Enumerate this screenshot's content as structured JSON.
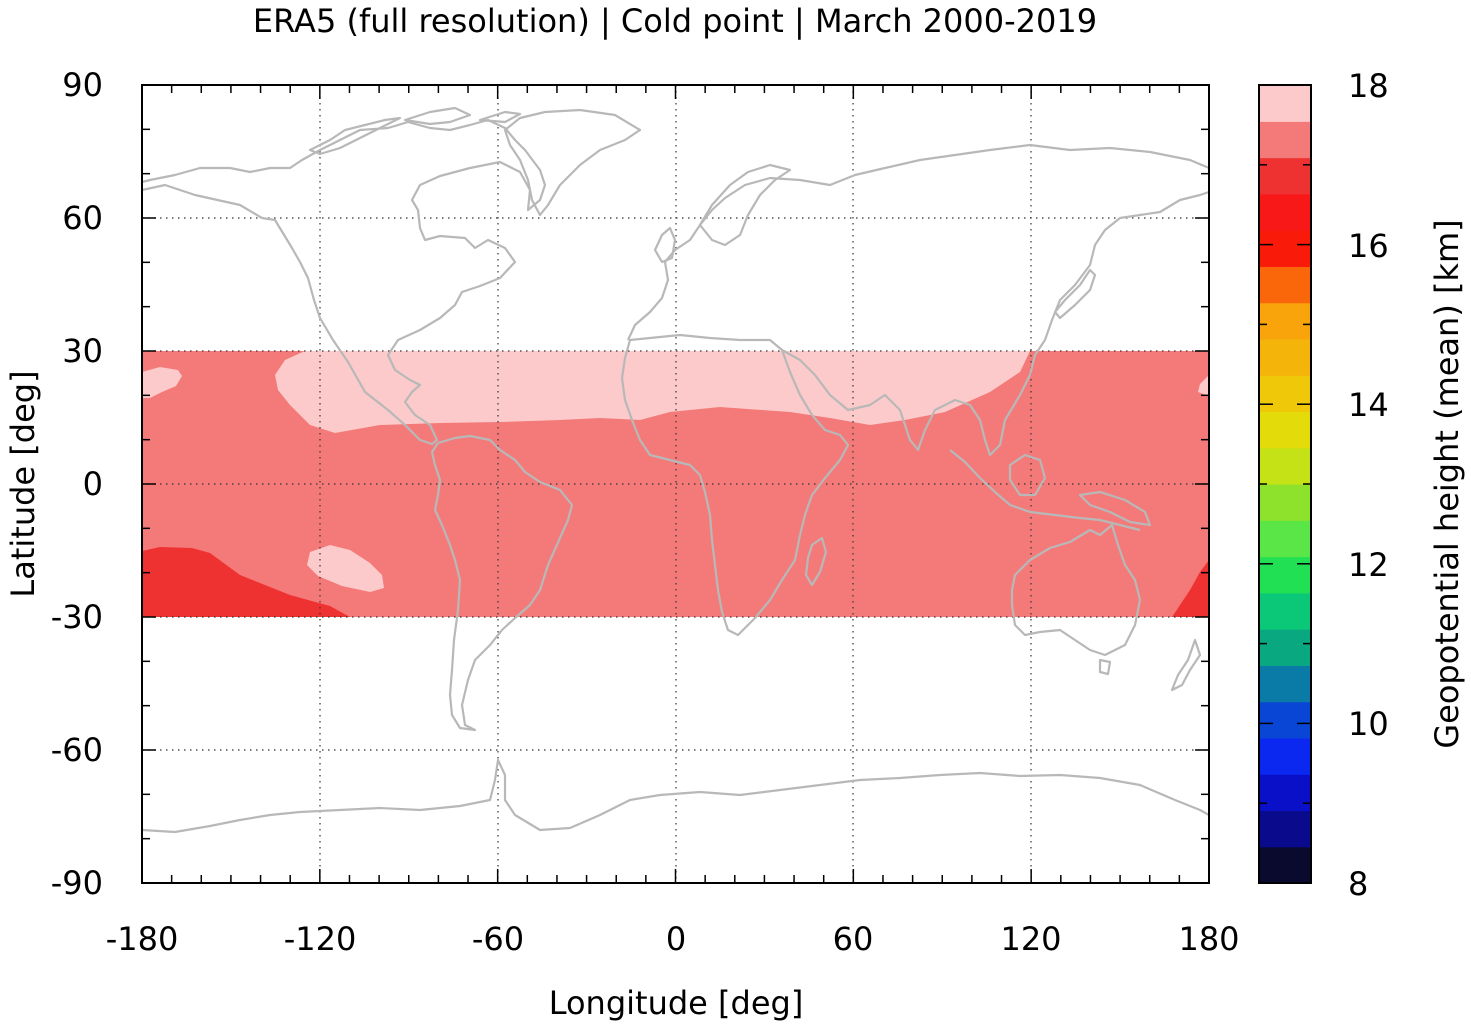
{
  "title": "ERA5 (full resolution) | Cold point | March 2000-2019",
  "x_axis": {
    "label": "Longitude [deg]",
    "range": [
      -180,
      180
    ],
    "ticks": [
      "-180",
      "-120",
      "-60",
      "0",
      "60",
      "120",
      "180"
    ]
  },
  "y_axis": {
    "label": "Latitude [deg]",
    "range": [
      -90,
      90
    ],
    "ticks": [
      "90",
      "60",
      "30",
      "0",
      "-30",
      "-60",
      "-90"
    ]
  },
  "colorbar": {
    "label": "Geopotential height (mean) [km]",
    "range": [
      8,
      18
    ],
    "ticks": [
      "18",
      "16",
      "14",
      "12",
      "10",
      "8"
    ],
    "bands": [
      "#0a0a2e",
      "#0a0a8c",
      "#0a10c8",
      "#0a28f0",
      "#0a46d6",
      "#0a7aa6",
      "#0aa880",
      "#0ac878",
      "#22e054",
      "#5ae646",
      "#8ee22c",
      "#c4e216",
      "#e4dc0a",
      "#f0c80a",
      "#f4b40a",
      "#f8a40a",
      "#fa660a",
      "#fa1a0a",
      "#f81818",
      "#ee3232",
      "#f47a7a",
      "#fccaca"
    ]
  },
  "field": {
    "lat_range": [
      -30,
      30
    ],
    "base_color": "#f47a7a",
    "high_color": "#fccaca",
    "low_color": "#ee3232"
  },
  "grid": "dotted",
  "coastlines_color": "#b8b8b8"
}
